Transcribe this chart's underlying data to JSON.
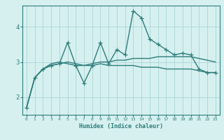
{
  "xlabel": "Humidex (Indice chaleur)",
  "x": [
    0,
    1,
    2,
    3,
    4,
    5,
    6,
    7,
    8,
    9,
    10,
    11,
    12,
    13,
    14,
    15,
    16,
    17,
    18,
    19,
    20,
    21,
    22,
    23
  ],
  "line1": [
    1.7,
    2.55,
    2.8,
    2.9,
    2.95,
    3.55,
    2.9,
    2.4,
    2.9,
    3.55,
    2.95,
    3.35,
    3.2,
    4.45,
    4.25,
    3.65,
    3.5,
    3.35,
    3.2,
    3.25,
    3.2,
    2.8,
    2.7,
    2.7
  ],
  "line2": [
    1.7,
    2.55,
    2.8,
    2.95,
    3.0,
    2.95,
    2.9,
    2.9,
    2.95,
    3.0,
    3.0,
    3.05,
    3.05,
    3.1,
    3.1,
    3.1,
    3.15,
    3.15,
    3.15,
    3.15,
    3.15,
    3.1,
    3.05,
    3.0
  ],
  "line3": [
    1.7,
    2.55,
    2.8,
    2.9,
    2.95,
    3.0,
    2.95,
    2.9,
    2.9,
    2.95,
    2.9,
    2.9,
    2.9,
    2.9,
    2.85,
    2.85,
    2.85,
    2.8,
    2.8,
    2.8,
    2.8,
    2.75,
    2.7,
    2.7
  ],
  "line_color": "#2e7d7a",
  "bg_color": "#d6f0f0",
  "grid_color": "#b0d8d8",
  "ylim": [
    1.5,
    4.6
  ],
  "yticks": [
    2,
    3,
    4
  ],
  "marker": "+",
  "markersize": 4,
  "linewidth": 1.0
}
